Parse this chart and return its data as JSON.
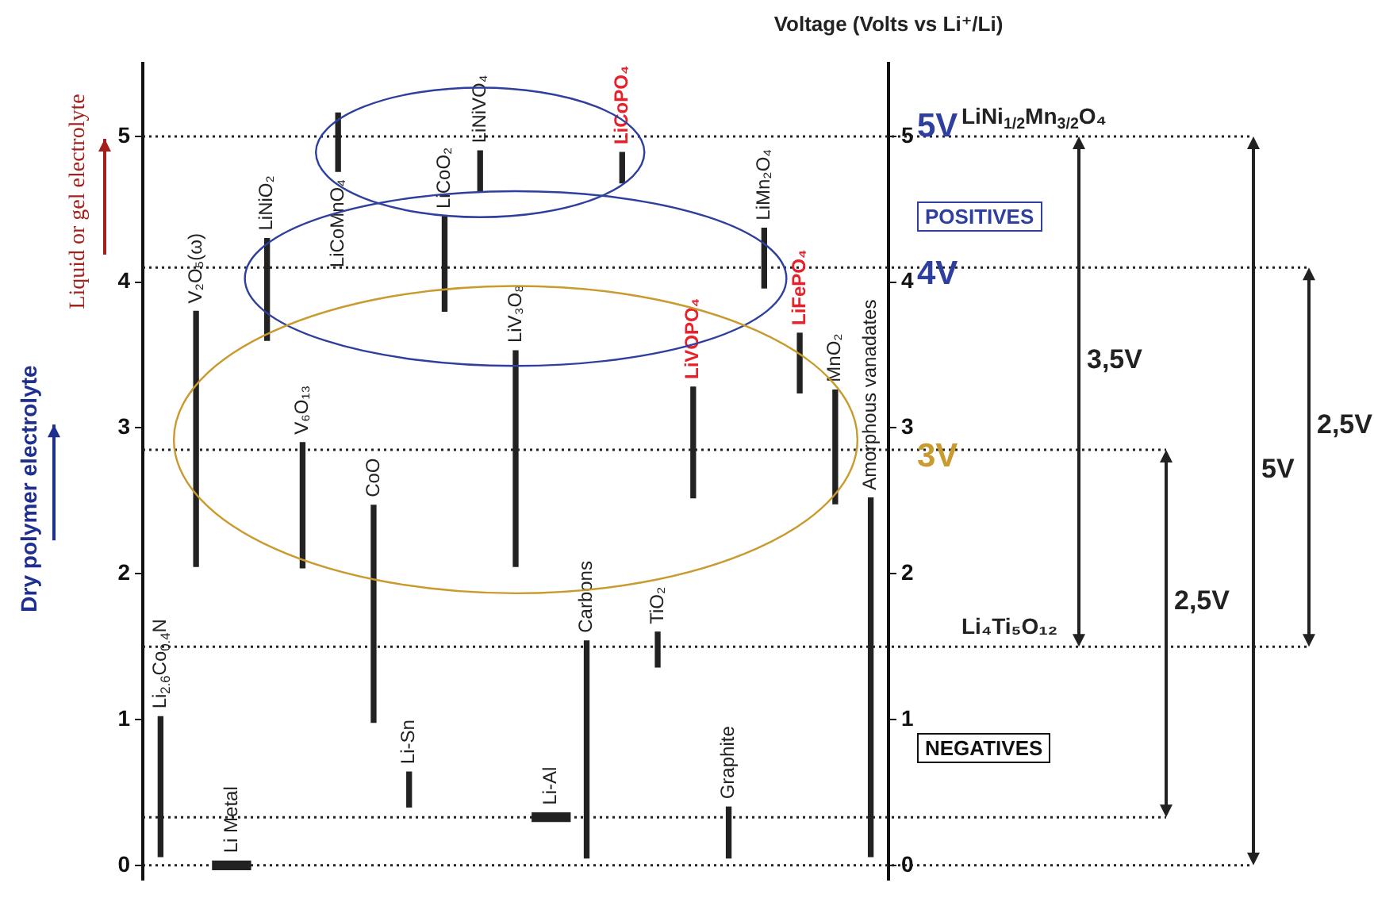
{
  "chart_data": {
    "type": "bar",
    "color": "#222222",
    "categories": [
      "Li$_{2.6}$Co$_{0.4}$N",
      "V₂O₅(ω)",
      "Li Metal",
      "LiNiO₂",
      "V₆O₁₃",
      "LiCoMnO₄",
      "CoO",
      "Li-Sn",
      "LiCoO₂",
      "LiNiVO₄",
      "LiV₃O₈",
      "Li-Al",
      "Carbons",
      "LiCoPO₄",
      "TiO₂",
      "LiVOPO₄",
      "Graphite",
      "LiMn₂O₄",
      "LiFePO₄",
      "MnO₂",
      "Amorphous vanadates"
    ],
    "base": [
      0.06,
      2.05,
      -0.03,
      3.6,
      2.04,
      4.76,
      0.98,
      0.4,
      3.8,
      4.62,
      2.05,
      0.3,
      0.05,
      4.68,
      1.36,
      2.52,
      0.05,
      3.96,
      3.24,
      2.48,
      0.06
    ],
    "values": [
      0.96,
      1.75,
      0.06,
      0.7,
      0.86,
      0.4,
      1.49,
      0.24,
      0.65,
      0.28,
      1.48,
      0.06,
      1.49,
      0.21,
      0.24,
      0.76,
      0.35,
      0.41,
      0.41,
      0.78,
      2.46
    ],
    "ylim": [
      -0.1,
      5.5
    ],
    "yticks": [
      0,
      1,
      2,
      3,
      4,
      5
    ],
    "y2lim": [
      -0.1,
      5.5
    ],
    "y2ticks": [
      0,
      1,
      2,
      3,
      4,
      5
    ],
    "y2label": "Voltage (Volts vs Li⁺/Li)",
    "ref_lines": [
      {
        "axis": "y",
        "value": 5,
        "label": "LiNi$_{1/2}$Mn$_{3/2}$O₄",
        "line_style": "dotted"
      },
      {
        "axis": "y",
        "value": 4.1,
        "line_style": "dotted"
      },
      {
        "axis": "y",
        "value": 2.85,
        "line_style": "dotted"
      },
      {
        "axis": "y",
        "value": 1.5,
        "label": "Li₄Ti₅O₁₂",
        "line_style": "dotted"
      },
      {
        "axis": "y",
        "value": 0.33,
        "line_style": "dotted"
      },
      {
        "axis": "y",
        "value": 0,
        "line_style": "dotted"
      }
    ],
    "annotations": [
      {
        "text": "5V",
        "y": 5
      },
      {
        "text": "4V",
        "y": 4.1
      },
      {
        "text": "3V",
        "y": 2.85
      },
      "POSITIVES",
      "NEGATIVES",
      "3,5V",
      "2,5V",
      "5V",
      "2,5V",
      "Liquid or gel electrolyte",
      "Dry polymer electrolyte"
    ]
  }
}
